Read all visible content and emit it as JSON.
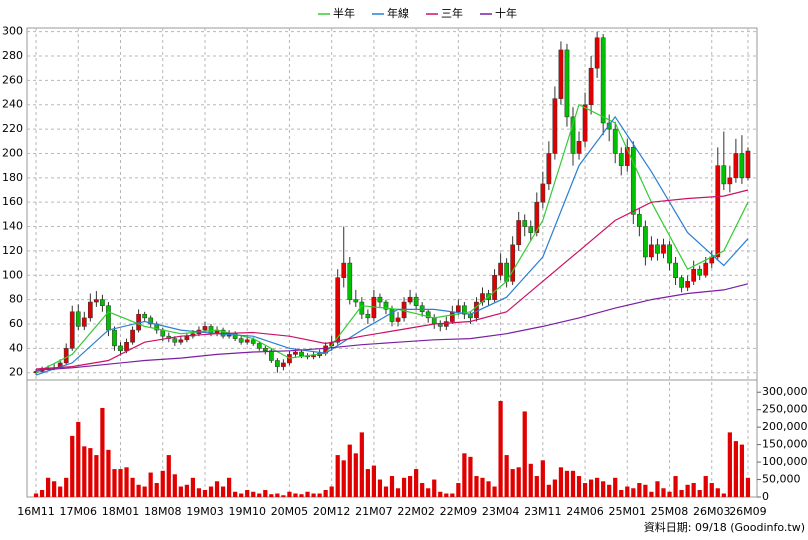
{
  "chart_data": {
    "type": "candlestick",
    "legend_position": "top",
    "up_color": "#e00000",
    "down_color": "#00c000",
    "volume_color": "#e00000",
    "ylim": [
      14,
      303
    ],
    "yticks": [
      20,
      40,
      60,
      80,
      100,
      120,
      140,
      160,
      180,
      200,
      220,
      240,
      260,
      280,
      300
    ],
    "grid": true,
    "xlim": [
      -1.5,
      119.5
    ],
    "xticks": [
      {
        "value": 0,
        "label": "16M11"
      },
      {
        "value": 7,
        "label": "17M06"
      },
      {
        "value": 14,
        "label": "18M01"
      },
      {
        "value": 21,
        "label": "18M08"
      },
      {
        "value": 28,
        "label": "19M03"
      },
      {
        "value": 35,
        "label": "19M10"
      },
      {
        "value": 42,
        "label": "20M05"
      },
      {
        "value": 49,
        "label": "20M12"
      },
      {
        "value": 56,
        "label": "21M07"
      },
      {
        "value": 63,
        "label": "22M02"
      },
      {
        "value": 70,
        "label": "22M09"
      },
      {
        "value": 77,
        "label": "23M04"
      },
      {
        "value": 84,
        "label": "23M11"
      },
      {
        "value": 91,
        "label": "24M06"
      },
      {
        "value": 98,
        "label": "25M01"
      },
      {
        "value": 105,
        "label": "25M08"
      },
      {
        "value": 112,
        "label": "26M03"
      },
      {
        "value": 118,
        "label": "26M09"
      }
    ],
    "candles": [
      [
        20,
        23,
        18,
        21
      ],
      [
        21,
        25,
        20,
        23
      ],
      [
        23,
        26,
        22,
        24
      ],
      [
        24,
        27,
        22,
        24
      ],
      [
        24,
        31,
        23,
        28
      ],
      [
        28,
        44,
        26,
        40
      ],
      [
        40,
        75,
        38,
        70
      ],
      [
        70,
        76,
        55,
        58
      ],
      [
        58,
        70,
        55,
        65
      ],
      [
        65,
        85,
        62,
        78
      ],
      [
        78,
        87,
        74,
        80
      ],
      [
        80,
        84,
        70,
        75
      ],
      [
        75,
        78,
        50,
        55
      ],
      [
        55,
        58,
        38,
        42
      ],
      [
        42,
        45,
        34,
        38
      ],
      [
        38,
        48,
        36,
        45
      ],
      [
        45,
        58,
        43,
        55
      ],
      [
        55,
        72,
        53,
        68
      ],
      [
        68,
        70,
        62,
        65
      ],
      [
        65,
        67,
        57,
        60
      ],
      [
        60,
        62,
        52,
        55
      ],
      [
        55,
        57,
        46,
        50
      ],
      [
        50,
        53,
        45,
        48
      ],
      [
        48,
        50,
        42,
        45
      ],
      [
        45,
        50,
        43,
        47
      ],
      [
        47,
        53,
        45,
        50
      ],
      [
        50,
        55,
        48,
        52
      ],
      [
        52,
        58,
        50,
        55
      ],
      [
        55,
        62,
        53,
        58
      ],
      [
        58,
        60,
        50,
        52
      ],
      [
        52,
        58,
        50,
        55
      ],
      [
        55,
        57,
        48,
        50
      ],
      [
        50,
        55,
        48,
        52
      ],
      [
        52,
        54,
        46,
        48
      ],
      [
        48,
        50,
        43,
        45
      ],
      [
        45,
        50,
        43,
        47
      ],
      [
        47,
        49,
        42,
        44
      ],
      [
        44,
        46,
        38,
        40
      ],
      [
        40,
        42,
        35,
        38
      ],
      [
        38,
        40,
        28,
        30
      ],
      [
        30,
        32,
        20,
        25
      ],
      [
        25,
        31,
        22,
        28
      ],
      [
        28,
        38,
        26,
        35
      ],
      [
        35,
        40,
        33,
        37
      ],
      [
        37,
        39,
        32,
        34
      ],
      [
        34,
        36,
        31,
        33
      ],
      [
        33,
        37,
        31,
        34
      ],
      [
        34,
        39,
        32,
        36
      ],
      [
        36,
        45,
        34,
        42
      ],
      [
        42,
        50,
        38,
        45
      ],
      [
        45,
        105,
        43,
        98
      ],
      [
        98,
        140,
        90,
        110
      ],
      [
        110,
        115,
        76,
        80
      ],
      [
        80,
        88,
        74,
        78
      ],
      [
        78,
        82,
        64,
        68
      ],
      [
        68,
        72,
        60,
        65
      ],
      [
        65,
        88,
        62,
        82
      ],
      [
        82,
        85,
        74,
        78
      ],
      [
        78,
        80,
        68,
        72
      ],
      [
        72,
        75,
        58,
        62
      ],
      [
        62,
        70,
        58,
        65
      ],
      [
        65,
        82,
        62,
        78
      ],
      [
        78,
        88,
        76,
        82
      ],
      [
        82,
        85,
        72,
        75
      ],
      [
        75,
        78,
        66,
        70
      ],
      [
        70,
        72,
        61,
        65
      ],
      [
        65,
        68,
        56,
        60
      ],
      [
        60,
        63,
        54,
        58
      ],
      [
        58,
        66,
        55,
        62
      ],
      [
        62,
        75,
        60,
        70
      ],
      [
        70,
        80,
        67,
        75
      ],
      [
        75,
        78,
        64,
        68
      ],
      [
        68,
        70,
        60,
        65
      ],
      [
        65,
        82,
        62,
        78
      ],
      [
        78,
        90,
        75,
        85
      ],
      [
        85,
        88,
        75,
        80
      ],
      [
        80,
        105,
        78,
        100
      ],
      [
        100,
        118,
        96,
        110
      ],
      [
        110,
        114,
        90,
        95
      ],
      [
        95,
        132,
        92,
        125
      ],
      [
        125,
        152,
        120,
        145
      ],
      [
        145,
        150,
        132,
        140
      ],
      [
        140,
        145,
        128,
        135
      ],
      [
        135,
        168,
        132,
        160
      ],
      [
        160,
        185,
        155,
        175
      ],
      [
        175,
        210,
        170,
        200
      ],
      [
        200,
        255,
        195,
        245
      ],
      [
        245,
        292,
        240,
        285
      ],
      [
        285,
        290,
        222,
        230
      ],
      [
        230,
        238,
        190,
        200
      ],
      [
        200,
        218,
        195,
        210
      ],
      [
        210,
        250,
        205,
        240
      ],
      [
        240,
        280,
        232,
        270
      ],
      [
        270,
        300,
        262,
        295
      ],
      [
        295,
        298,
        215,
        225
      ],
      [
        225,
        232,
        210,
        220
      ],
      [
        220,
        226,
        192,
        200
      ],
      [
        200,
        205,
        182,
        190
      ],
      [
        190,
        212,
        185,
        205
      ],
      [
        205,
        210,
        142,
        150
      ],
      [
        150,
        155,
        132,
        140
      ],
      [
        140,
        145,
        108,
        115
      ],
      [
        115,
        132,
        112,
        125
      ],
      [
        125,
        130,
        112,
        118
      ],
      [
        118,
        130,
        114,
        125
      ],
      [
        125,
        128,
        104,
        110
      ],
      [
        110,
        115,
        92,
        98
      ],
      [
        98,
        100,
        86,
        90
      ],
      [
        90,
        100,
        87,
        95
      ],
      [
        95,
        112,
        92,
        105
      ],
      [
        105,
        108,
        96,
        100
      ],
      [
        100,
        115,
        98,
        110
      ],
      [
        110,
        120,
        106,
        115
      ],
      [
        115,
        205,
        112,
        190
      ],
      [
        190,
        218,
        170,
        175
      ],
      [
        175,
        190,
        168,
        180
      ],
      [
        180,
        212,
        176,
        200
      ],
      [
        200,
        215,
        175,
        180
      ],
      [
        180,
        205,
        178,
        202
      ]
    ],
    "series": [
      {
        "name": "半年",
        "color": "#33cc33",
        "x": [
          0,
          6,
          12,
          18,
          24,
          30,
          36,
          42,
          48,
          54,
          60,
          66,
          72,
          78,
          84,
          90,
          96,
          102,
          108,
          114,
          118
        ],
        "values": [
          20,
          35,
          70,
          58,
          52,
          55,
          48,
          32,
          36,
          75,
          72,
          65,
          70,
          95,
          145,
          240,
          225,
          160,
          105,
          120,
          160
        ]
      },
      {
        "name": "年線",
        "color": "#2a7fd4",
        "x": [
          0,
          6,
          12,
          18,
          24,
          30,
          36,
          42,
          48,
          54,
          60,
          66,
          72,
          78,
          84,
          90,
          96,
          102,
          108,
          114,
          118
        ],
        "values": [
          18,
          28,
          55,
          62,
          55,
          52,
          50,
          40,
          36,
          55,
          72,
          72,
          68,
          82,
          115,
          190,
          230,
          185,
          135,
          108,
          130
        ]
      },
      {
        "name": "三年",
        "color": "#cc1166",
        "x": [
          0,
          6,
          12,
          18,
          24,
          30,
          36,
          42,
          48,
          54,
          60,
          66,
          72,
          78,
          84,
          90,
          96,
          102,
          108,
          114,
          118
        ],
        "values": [
          23,
          25,
          30,
          45,
          50,
          52,
          53,
          50,
          44,
          50,
          55,
          60,
          62,
          70,
          95,
          120,
          145,
          160,
          163,
          165,
          170
        ]
      },
      {
        "name": "十年",
        "color": "#7a1fa2",
        "x": [
          0,
          6,
          12,
          18,
          24,
          30,
          36,
          42,
          48,
          54,
          60,
          66,
          72,
          78,
          84,
          90,
          96,
          102,
          108,
          114,
          118
        ],
        "values": [
          22,
          24,
          27,
          30,
          32,
          35,
          37,
          38,
          40,
          43,
          45,
          47,
          48,
          52,
          58,
          65,
          73,
          80,
          85,
          88,
          93
        ]
      }
    ],
    "volume": {
      "ylim": [
        0,
        335000
      ],
      "yticks": [
        0,
        {
          "value": 50000,
          "label": "50,000"
        },
        {
          "value": 100000,
          "label": "100,000"
        },
        {
          "value": 150000,
          "label": "150,000"
        },
        {
          "value": 200000,
          "label": "200,000"
        },
        {
          "value": 250000,
          "label": "250,000"
        },
        {
          "value": 300000,
          "label": "300,000"
        }
      ],
      "values": [
        10000,
        20000,
        55000,
        45000,
        30000,
        55000,
        175000,
        215000,
        145000,
        140000,
        120000,
        255000,
        135000,
        80000,
        80000,
        85000,
        55000,
        35000,
        30000,
        70000,
        40000,
        75000,
        120000,
        65000,
        30000,
        35000,
        55000,
        25000,
        20000,
        30000,
        45000,
        30000,
        55000,
        15000,
        10000,
        20000,
        15000,
        10000,
        20000,
        8000,
        10000,
        5000,
        15000,
        10000,
        8000,
        15000,
        10000,
        10000,
        20000,
        30000,
        120000,
        105000,
        150000,
        125000,
        185000,
        80000,
        90000,
        50000,
        30000,
        60000,
        25000,
        55000,
        60000,
        80000,
        40000,
        25000,
        50000,
        15000,
        10000,
        10000,
        40000,
        125000,
        115000,
        60000,
        55000,
        45000,
        30000,
        275000,
        120000,
        80000,
        85000,
        245000,
        95000,
        60000,
        105000,
        35000,
        50000,
        85000,
        75000,
        75000,
        60000,
        40000,
        50000,
        55000,
        45000,
        35000,
        55000,
        20000,
        30000,
        25000,
        40000,
        35000,
        15000,
        45000,
        25000,
        15000,
        60000,
        20000,
        35000,
        40000,
        20000,
        60000,
        40000,
        25000,
        10000,
        185000,
        160000,
        150000,
        55000
      ]
    },
    "footer": "資料日期: 09/18 (Goodinfo.tw)"
  }
}
